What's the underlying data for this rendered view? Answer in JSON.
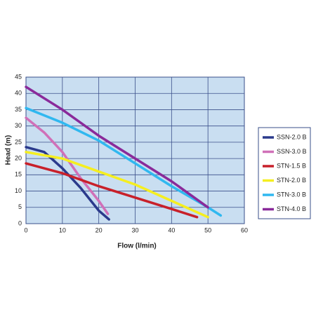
{
  "chart_data": {
    "type": "line",
    "x_label": "Flow (l/min)",
    "y_label": "Head (m)",
    "xlim": [
      0,
      60
    ],
    "xticks": [
      0,
      10,
      20,
      30,
      40,
      50,
      60
    ],
    "ylim": [
      0,
      45
    ],
    "yticks": [
      0,
      5,
      10,
      15,
      20,
      25,
      30,
      35,
      40,
      45
    ],
    "grid": true,
    "legend": "right",
    "series": [
      {
        "name": "SSN-2.0 B",
        "color": "#2b3a8c",
        "x": [
          0,
          5,
          10,
          15,
          20,
          22.8
        ],
        "values": [
          23.5,
          22,
          17,
          11,
          4,
          1.3
        ]
      },
      {
        "name": "SSN-3.0 B",
        "color": "#d070b8",
        "x": [
          0,
          5,
          10,
          15,
          20,
          22.5
        ],
        "values": [
          32.5,
          28,
          22,
          14,
          7,
          3
        ]
      },
      {
        "name": "STN-1.5 B",
        "color": "#c8202a",
        "x": [
          0,
          10,
          20,
          30,
          40,
          47
        ],
        "values": [
          18.5,
          15.5,
          11.5,
          8,
          4.5,
          2
        ]
      },
      {
        "name": "STN-2.0 B",
        "color": "#f5ee20",
        "x": [
          0,
          10,
          20,
          30,
          40,
          50
        ],
        "values": [
          22,
          20,
          16,
          12,
          7,
          2
        ]
      },
      {
        "name": "STN-3.0 B",
        "color": "#30b8f0",
        "x": [
          0,
          10,
          20,
          30,
          40,
          50,
          53.5
        ],
        "values": [
          35.5,
          31,
          25.5,
          18.5,
          11.5,
          5,
          2.5
        ]
      },
      {
        "name": "STN-4.0 B",
        "color": "#8a2a9a",
        "x": [
          0,
          10,
          20,
          30,
          40,
          50
        ],
        "values": [
          42,
          35,
          27,
          20,
          13,
          5
        ]
      }
    ]
  }
}
